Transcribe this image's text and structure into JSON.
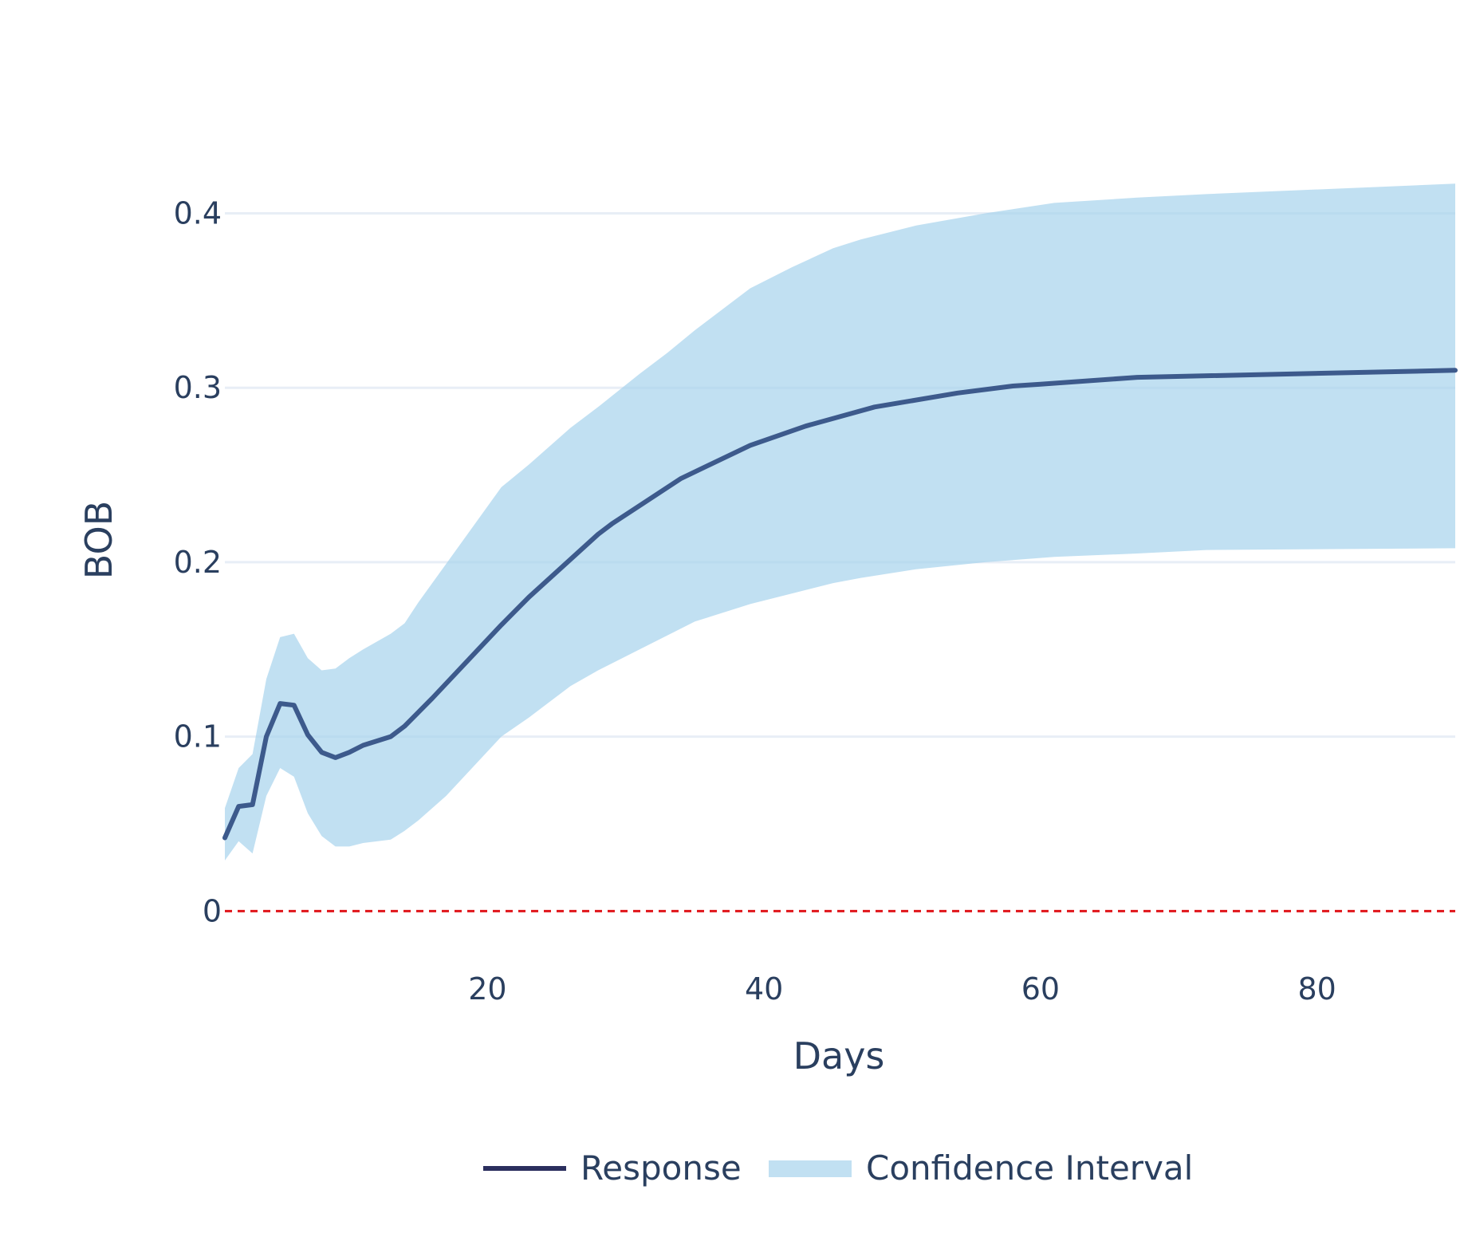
{
  "chart_data": {
    "type": "line",
    "xlabel": "Days",
    "ylabel": "BOB",
    "xlim": [
      1,
      90
    ],
    "ylim": [
      -0.025,
      0.44
    ],
    "x_ticks": [
      20,
      40,
      60,
      80
    ],
    "y_ticks": [
      0,
      0.1,
      0.2,
      0.3,
      0.4
    ],
    "x_tick_labels": [
      "20",
      "40",
      "60",
      "80"
    ],
    "y_tick_labels": [
      "0",
      "0.1",
      "0.2",
      "0.3",
      "0.4"
    ],
    "grid": "horizontal",
    "legend_position": "bottom",
    "colors": {
      "response_line": "#3d5a8c",
      "legend_line": "#2b2f5e",
      "band": "#a6d3ec",
      "zero_line": "#e0161b",
      "grid": "#e8eef6"
    },
    "series": [
      {
        "name": "Response",
        "x": [
          1,
          2,
          3,
          4,
          5,
          6,
          7,
          8,
          9,
          10,
          11,
          13,
          14,
          16,
          21,
          23,
          28,
          29,
          34,
          39,
          43,
          48,
          54,
          58,
          60,
          67,
          90
        ],
        "values": [
          0.042,
          0.06,
          0.061,
          0.1,
          0.119,
          0.118,
          0.101,
          0.091,
          0.088,
          0.091,
          0.095,
          0.1,
          0.106,
          0.122,
          0.164,
          0.18,
          0.216,
          0.222,
          0.248,
          0.267,
          0.278,
          0.289,
          0.297,
          0.301,
          0.302,
          0.306,
          0.31
        ]
      }
    ],
    "bands": [
      {
        "name": "Confidence Interval",
        "x": [
          1,
          2,
          3,
          4,
          5,
          6,
          7,
          8,
          9,
          10,
          11,
          13,
          14,
          15,
          17,
          21,
          23,
          26,
          28,
          31,
          33,
          35,
          39,
          42,
          45,
          47,
          51,
          56,
          61,
          67,
          72,
          90
        ],
        "lower": [
          0.029,
          0.04,
          0.033,
          0.066,
          0.082,
          0.077,
          0.056,
          0.043,
          0.037,
          0.037,
          0.039,
          0.041,
          0.046,
          0.052,
          0.066,
          0.1,
          0.111,
          0.129,
          0.138,
          0.15,
          0.158,
          0.166,
          0.176,
          0.182,
          0.188,
          0.191,
          0.196,
          0.2,
          0.203,
          0.205,
          0.207,
          0.208
        ],
        "upper": [
          0.059,
          0.082,
          0.09,
          0.133,
          0.157,
          0.159,
          0.145,
          0.138,
          0.139,
          0.145,
          0.15,
          0.159,
          0.165,
          0.177,
          0.199,
          0.243,
          0.256,
          0.277,
          0.289,
          0.308,
          0.32,
          0.333,
          0.357,
          0.369,
          0.38,
          0.385,
          0.393,
          0.4,
          0.406,
          0.409,
          0.411,
          0.417
        ]
      }
    ],
    "reference_lines": [
      {
        "axis": "y",
        "value": 0,
        "style": "dashed",
        "color": "#e0161b"
      }
    ],
    "legend": [
      "Response",
      "Confidence Interval"
    ]
  }
}
